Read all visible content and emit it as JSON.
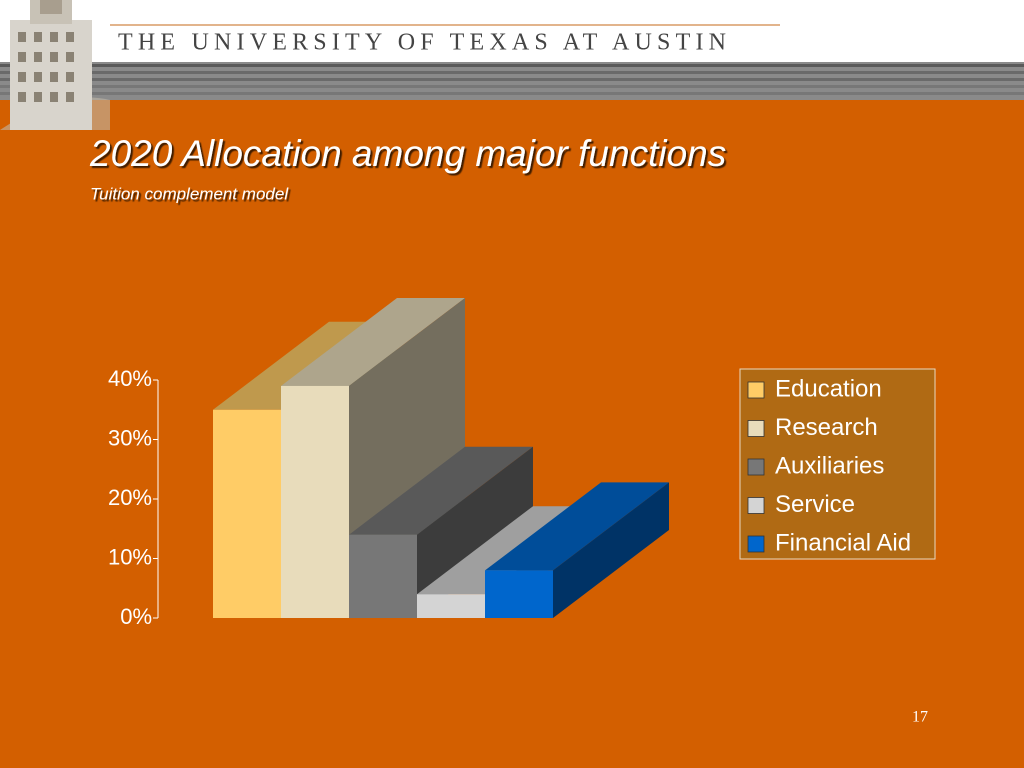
{
  "header": {
    "title": "THE UNIVERSITY OF TEXAS AT AUSTIN"
  },
  "slide_number": "17",
  "chart_data": {
    "type": "bar3d",
    "title": "2020 Allocation among major functions",
    "subtitle": "Tuition complement model",
    "categories": [
      "Education",
      "Research",
      "Auxiliaries",
      "Service",
      "Financial Aid"
    ],
    "values": [
      35,
      39,
      14,
      4,
      8
    ],
    "colors": [
      "#ffcc66",
      "#e8dcbb",
      "#777777",
      "#d4d4d4",
      "#0066cc"
    ],
    "ylim": [
      0,
      40
    ],
    "yticks": [
      {
        "value": 0,
        "label": "0%"
      },
      {
        "value": 10,
        "label": "10%"
      },
      {
        "value": 20,
        "label": "20%"
      },
      {
        "value": 30,
        "label": "30%"
      },
      {
        "value": 40,
        "label": "40%"
      }
    ],
    "legend": "right"
  }
}
